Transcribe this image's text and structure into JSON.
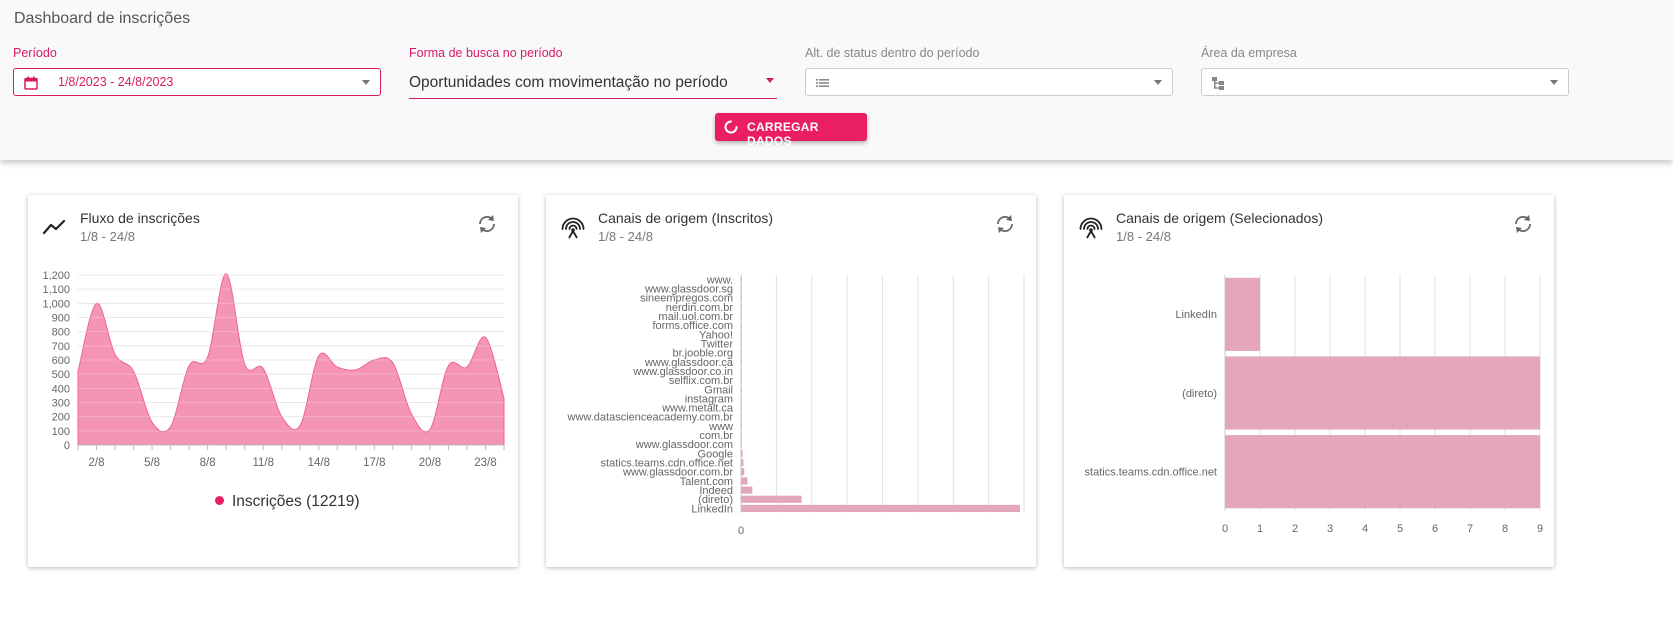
{
  "header": {
    "title": "Dashboard de inscrições"
  },
  "filters": {
    "periodo": {
      "label": "Período",
      "value": "1/8/2023 - 24/8/2023"
    },
    "forma_busca": {
      "label": "Forma de busca no período",
      "value": "Oportunidades com movimentação no período"
    },
    "alt_status": {
      "label": "Alt. de status dentro do período",
      "value": ""
    },
    "area": {
      "label": "Área da empresa",
      "value": ""
    }
  },
  "load_button": {
    "label": "CARREGAR DADOS"
  },
  "colors": {
    "accent": "#e91e63",
    "area_fill": "#f48fb1",
    "bar_fill": "#e4a6bd"
  },
  "cards": [
    {
      "title": "Fluxo de inscrições",
      "subtitle": "1/8 - 24/8",
      "icon": "trending-line-icon"
    },
    {
      "title": "Canais de origem (Inscritos)",
      "subtitle": "1/8 - 24/8",
      "icon": "broadcast-icon"
    },
    {
      "title": "Canais de origem (Selecionados)",
      "subtitle": "1/8 - 24/8",
      "icon": "broadcast-icon"
    }
  ],
  "chart_data": [
    {
      "type": "area",
      "x": [
        "1/8",
        "2/8",
        "3/8",
        "4/8",
        "5/8",
        "6/8",
        "7/8",
        "8/8",
        "9/8",
        "10/8",
        "11/8",
        "12/8",
        "13/8",
        "14/8",
        "15/8",
        "16/8",
        "17/8",
        "18/8",
        "19/8",
        "20/8",
        "21/8",
        "22/8",
        "23/8",
        "24/8"
      ],
      "x_ticks": [
        "2/8",
        "5/8",
        "8/8",
        "11/8",
        "14/8",
        "17/8",
        "20/8",
        "23/8"
      ],
      "series": [
        {
          "name": "Inscrições (12219)",
          "values": [
            520,
            1000,
            640,
            520,
            160,
            130,
            560,
            620,
            1210,
            570,
            540,
            200,
            140,
            630,
            550,
            530,
            600,
            580,
            220,
            110,
            560,
            550,
            760,
            330
          ]
        }
      ],
      "ylim": [
        0,
        1200
      ],
      "y_ticks": [
        0,
        100,
        200,
        300,
        400,
        500,
        600,
        700,
        800,
        900,
        "1,000",
        "1,100",
        "1,200"
      ],
      "grid": true,
      "legend": "bottom"
    },
    {
      "type": "bar",
      "orientation": "horizontal",
      "categories": [
        "www.",
        "www.glassdoor.sg",
        "sineempregos.com",
        "nerdin.com.br",
        "mail.uol.com.br",
        "forms.office.com",
        "Yahoo!",
        "Twitter",
        "br.jooble.org",
        "www.glassdoor.ca",
        "www.glassdoor.co.in",
        "selflix.com.br",
        "Gmail",
        "instagram",
        "www.metalt.ca",
        "www.datascienceacademy.com.br",
        "www",
        "com.br",
        "www.glassdoor.com",
        "Google",
        "statics.teams.cdn.office.net",
        "www.glassdoor.com.br",
        "Talent.com",
        "Indeed",
        "(direto)",
        "LinkedIn"
      ],
      "values": [
        1,
        1,
        1,
        1,
        1,
        1,
        1,
        1,
        1,
        1,
        1,
        1,
        1,
        1,
        1,
        1,
        1,
        1,
        1,
        2,
        3,
        4,
        8,
        14,
        75,
        345
      ],
      "xlim": [
        0,
        350
      ],
      "x_ticks": [
        0
      ],
      "grid": true
    },
    {
      "type": "bar",
      "orientation": "horizontal",
      "categories": [
        "LinkedIn",
        "(direto)",
        "statics.teams.cdn.office.net"
      ],
      "values": [
        1,
        9,
        9
      ],
      "xlim": [
        0,
        9
      ],
      "x_ticks": [
        0,
        1,
        2,
        3,
        4,
        5,
        6,
        7,
        8,
        9
      ],
      "grid": true
    }
  ]
}
